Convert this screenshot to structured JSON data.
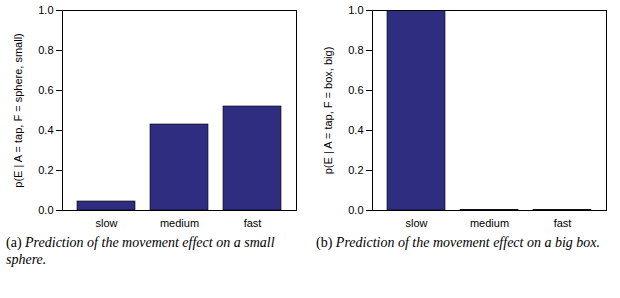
{
  "chart_data": [
    {
      "type": "bar",
      "categories": [
        "slow",
        "medium",
        "fast"
      ],
      "values": [
        0.045,
        0.43,
        0.52
      ],
      "color": "#2f2d80",
      "ylim": [
        0,
        1
      ],
      "yticks": [
        0,
        0.2,
        0.4,
        0.6,
        0.8,
        1
      ],
      "y_label": "p(E | A = tap, F = sphere, small)",
      "caption": "(a) Prediction of the movement effect on a small sphere."
    },
    {
      "type": "bar",
      "categories": [
        "slow",
        "medium",
        "fast"
      ],
      "values": [
        1.0,
        0.003,
        0.002
      ],
      "color": "#2f2d80",
      "ylim": [
        0,
        1
      ],
      "yticks": [
        0,
        0.2,
        0.4,
        0.6,
        0.8,
        1
      ],
      "y_label": "p(E | A = tap, F = box, big)",
      "caption": "(b) Prediction of the movement effect on a big box."
    }
  ]
}
